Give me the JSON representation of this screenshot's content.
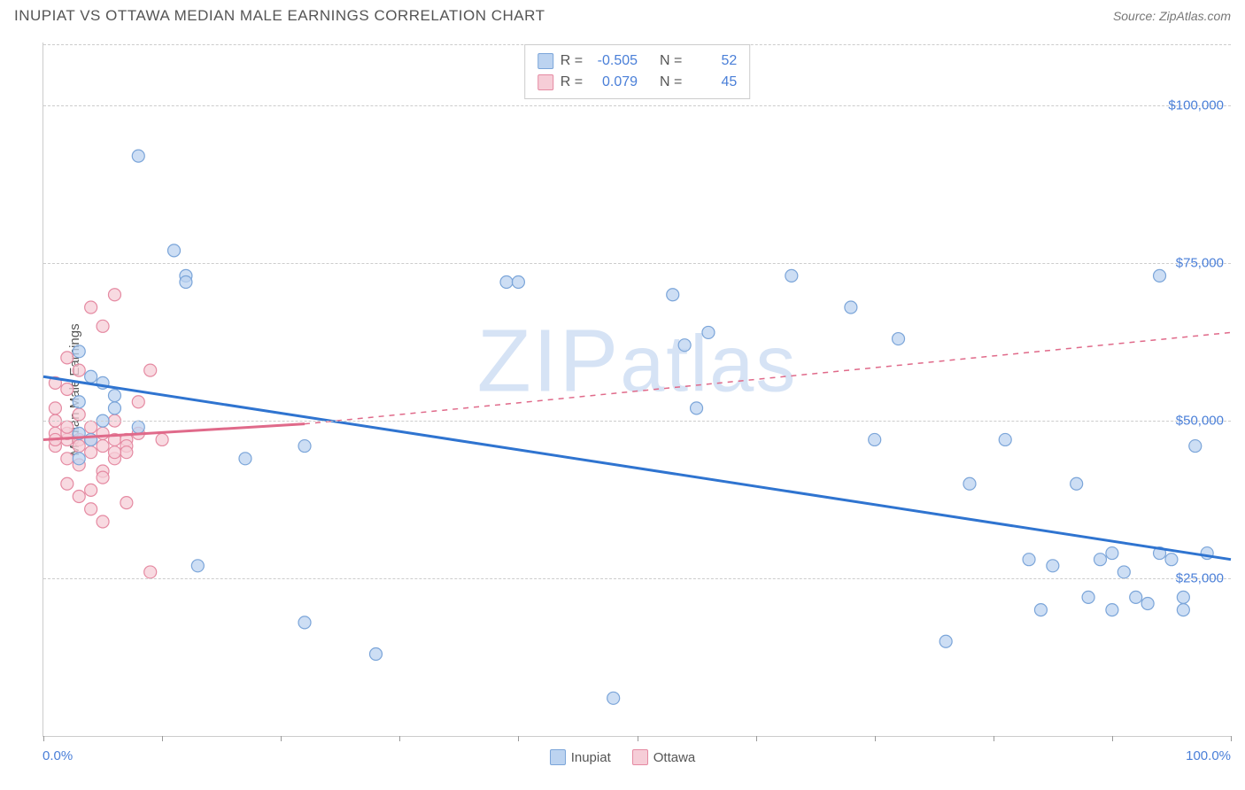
{
  "header": {
    "title": "INUPIAT VS OTTAWA MEDIAN MALE EARNINGS CORRELATION CHART",
    "source_label": "Source: ZipAtlas.com"
  },
  "watermark": {
    "text_prefix": "ZIP",
    "text_suffix": "atlas"
  },
  "chart": {
    "type": "scatter",
    "ylabel": "Median Male Earnings",
    "xlim": [
      0,
      100
    ],
    "ylim": [
      0,
      110000
    ],
    "x_ticks": [
      0,
      10,
      20,
      30,
      40,
      50,
      60,
      70,
      80,
      90,
      100
    ],
    "x_tick_labels": {
      "min": "0.0%",
      "max": "100.0%"
    },
    "y_gridlines": [
      25000,
      50000,
      75000,
      100000
    ],
    "y_tick_labels": [
      "$25,000",
      "$50,000",
      "$75,000",
      "$100,000"
    ],
    "background_color": "#ffffff",
    "grid_color": "#cccccc",
    "axis_label_color": "#4a7fd8",
    "marker_radius": 7,
    "marker_stroke_width": 1.2,
    "trend_line_width": 3,
    "trend_dash_width": 1.5,
    "series": [
      {
        "name": "Inupiat",
        "fill_color": "#bcd3f0",
        "stroke_color": "#7ba5d9",
        "line_color": "#2f74d0",
        "R": "-0.505",
        "N": "52",
        "trend": {
          "x1": 0,
          "y1": 57000,
          "x2": 100,
          "y2": 28000,
          "dashed_from_x": 100
        },
        "points": [
          [
            3,
            61000
          ],
          [
            8,
            92000
          ],
          [
            11,
            77000
          ],
          [
            12,
            73000
          ],
          [
            12,
            72000
          ],
          [
            3,
            53000
          ],
          [
            5,
            56000
          ],
          [
            6,
            54000
          ],
          [
            8,
            49000
          ],
          [
            3,
            48000
          ],
          [
            4,
            47000
          ],
          [
            5,
            50000
          ],
          [
            3,
            44000
          ],
          [
            13,
            27000
          ],
          [
            17,
            44000
          ],
          [
            22,
            46000
          ],
          [
            22,
            18000
          ],
          [
            28,
            13000
          ],
          [
            39,
            72000
          ],
          [
            40,
            72000
          ],
          [
            48,
            6000
          ],
          [
            53,
            70000
          ],
          [
            54,
            62000
          ],
          [
            55,
            52000
          ],
          [
            56,
            64000
          ],
          [
            63,
            73000
          ],
          [
            70,
            47000
          ],
          [
            68,
            68000
          ],
          [
            72,
            63000
          ],
          [
            76,
            15000
          ],
          [
            78,
            40000
          ],
          [
            81,
            47000
          ],
          [
            83,
            28000
          ],
          [
            84,
            20000
          ],
          [
            85,
            27000
          ],
          [
            87,
            40000
          ],
          [
            88,
            22000
          ],
          [
            89,
            28000
          ],
          [
            90,
            29000
          ],
          [
            90,
            20000
          ],
          [
            91,
            26000
          ],
          [
            92,
            22000
          ],
          [
            93,
            21000
          ],
          [
            94,
            29000
          ],
          [
            95,
            28000
          ],
          [
            96,
            22000
          ],
          [
            96,
            20000
          ],
          [
            97,
            46000
          ],
          [
            98,
            29000
          ],
          [
            94,
            73000
          ],
          [
            4,
            57000
          ],
          [
            6,
            52000
          ]
        ]
      },
      {
        "name": "Ottawa",
        "fill_color": "#f6cdd7",
        "stroke_color": "#e58aa2",
        "line_color": "#e06a8a",
        "R": "0.079",
        "N": "45",
        "trend": {
          "x1": 0,
          "y1": 47000,
          "x2": 22,
          "y2": 49500,
          "dashed_to_x": 100,
          "dashed_to_y": 64000
        },
        "points": [
          [
            1,
            56000
          ],
          [
            1,
            52000
          ],
          [
            1,
            50000
          ],
          [
            1,
            48000
          ],
          [
            1,
            46000
          ],
          [
            2,
            60000
          ],
          [
            2,
            55000
          ],
          [
            2,
            47000
          ],
          [
            2,
            44000
          ],
          [
            2,
            40000
          ],
          [
            3,
            58000
          ],
          [
            3,
            51000
          ],
          [
            3,
            47000
          ],
          [
            3,
            43000
          ],
          [
            3,
            38000
          ],
          [
            4,
            68000
          ],
          [
            4,
            49000
          ],
          [
            4,
            47000
          ],
          [
            4,
            45000
          ],
          [
            4,
            36000
          ],
          [
            5,
            65000
          ],
          [
            5,
            48000
          ],
          [
            5,
            46000
          ],
          [
            5,
            42000
          ],
          [
            5,
            34000
          ],
          [
            6,
            70000
          ],
          [
            6,
            50000
          ],
          [
            6,
            47000
          ],
          [
            6,
            44000
          ],
          [
            7,
            47000
          ],
          [
            7,
            46000
          ],
          [
            7,
            45000
          ],
          [
            7,
            37000
          ],
          [
            8,
            48000
          ],
          [
            8,
            53000
          ],
          [
            9,
            58000
          ],
          [
            9,
            26000
          ],
          [
            10,
            47000
          ],
          [
            6,
            45000
          ],
          [
            5,
            41000
          ],
          [
            4,
            39000
          ],
          [
            3,
            46000
          ],
          [
            2,
            48000
          ],
          [
            1,
            47000
          ],
          [
            2,
            49000
          ]
        ]
      }
    ]
  },
  "stats_legend": {
    "rows": [
      {
        "swatch_fill": "#bcd3f0",
        "swatch_stroke": "#7ba5d9",
        "R_label": "R =",
        "R_val": "-0.505",
        "N_label": "N =",
        "N_val": "52"
      },
      {
        "swatch_fill": "#f6cdd7",
        "swatch_stroke": "#e58aa2",
        "R_label": "R =",
        "R_val": "0.079",
        "N_label": "N =",
        "N_val": "45"
      }
    ]
  },
  "bottom_legend": [
    {
      "name": "Inupiat",
      "fill": "#bcd3f0",
      "stroke": "#7ba5d9"
    },
    {
      "name": "Ottawa",
      "fill": "#f6cdd7",
      "stroke": "#e58aa2"
    }
  ]
}
